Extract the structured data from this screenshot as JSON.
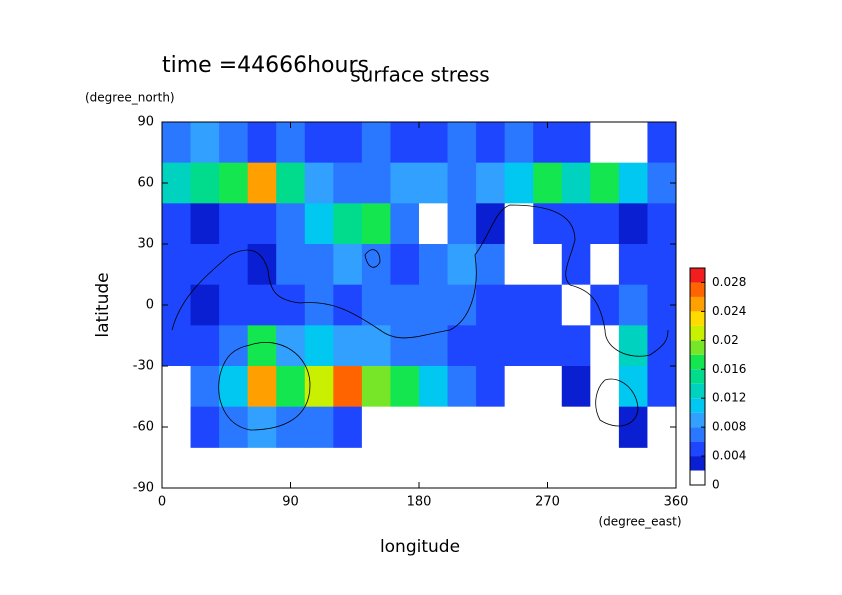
{
  "chart_data": {
    "type": "contour",
    "title": "surface stress",
    "subtitle": "time =44666hours",
    "x_label": "longitude",
    "x_units": "(degree_east)",
    "y_label": "latitude",
    "y_units": "(degree_north)",
    "xlim": [
      0,
      360
    ],
    "xticks": [
      0,
      90,
      180,
      270,
      360
    ],
    "ylim": [
      -90,
      90
    ],
    "yticks": [
      -90,
      -60,
      -30,
      0,
      30,
      60,
      90
    ],
    "x": [
      10,
      30,
      50,
      70,
      90,
      110,
      130,
      150,
      170,
      190,
      210,
      230,
      250,
      270,
      290,
      310,
      330,
      350
    ],
    "y": [
      80,
      60,
      40,
      20,
      0,
      -20,
      -40,
      -60
    ],
    "z": [
      [
        0.006,
        0.008,
        0.006,
        0.005,
        0.006,
        0.005,
        0.005,
        0.006,
        0.004,
        0.005,
        0.006,
        0.005,
        0.006,
        0.005,
        0.004,
        0.001,
        0.001,
        0.005
      ],
      [
        0.012,
        0.014,
        0.016,
        0.024,
        0.014,
        0.008,
        0.006,
        0.006,
        0.008,
        0.008,
        0.006,
        0.008,
        0.01,
        0.016,
        0.012,
        0.016,
        0.01,
        0.006
      ],
      [
        0.004,
        0.002,
        0.004,
        0.005,
        0.006,
        0.01,
        0.014,
        0.016,
        0.006,
        0.001,
        0.006,
        0.002,
        0.001,
        0.004,
        0.004,
        0.004,
        0.002,
        0.004
      ],
      [
        0.004,
        0.005,
        0.004,
        0.002,
        0.006,
        0.006,
        0.008,
        0.006,
        0.005,
        0.006,
        0.008,
        0.006,
        0.001,
        0.001,
        0.004,
        0.001,
        0.004,
        0.005
      ],
      [
        0.004,
        0.002,
        0.004,
        0.004,
        0.004,
        0.006,
        0.005,
        0.006,
        0.006,
        0.006,
        0.006,
        0.004,
        0.004,
        0.004,
        0.001,
        0.004,
        0.006,
        0.004
      ],
      [
        0.004,
        0.004,
        0.006,
        0.016,
        0.008,
        0.01,
        0.008,
        0.008,
        0.006,
        0.006,
        0.004,
        0.004,
        0.004,
        0.004,
        0.004,
        0.001,
        0.012,
        0.004
      ],
      [
        0.001,
        0.006,
        0.01,
        0.024,
        0.016,
        0.02,
        0.026,
        0.018,
        0.016,
        0.01,
        0.006,
        0.004,
        0.001,
        0.001,
        0.002,
        0.001,
        0.01,
        0.004
      ],
      [
        0.001,
        0.004,
        0.006,
        0.008,
        0.006,
        0.006,
        0.004,
        0.001,
        0.001,
        0.001,
        0.001,
        0.001,
        0.001,
        0.001,
        0.001,
        0.001,
        0.002,
        0.001
      ]
    ],
    "levels": [
      0,
      0.002,
      0.004,
      0.006,
      0.008,
      0.01,
      0.012,
      0.014,
      0.016,
      0.018,
      0.02,
      0.022,
      0.024,
      0.026,
      0.028,
      0.03
    ],
    "colors": [
      "#ffffff",
      "#0a1ed2",
      "#1e46ff",
      "#2a78ff",
      "#32a0ff",
      "#00c8f0",
      "#00d2c0",
      "#00dc8c",
      "#14e650",
      "#78e628",
      "#c8f000",
      "#ffdc00",
      "#ffa000",
      "#ff6400",
      "#f01e1e"
    ],
    "colorbar_ticks": [
      0,
      0.004,
      0.008,
      0.012,
      0.016,
      0.02,
      0.024,
      0.028
    ]
  }
}
